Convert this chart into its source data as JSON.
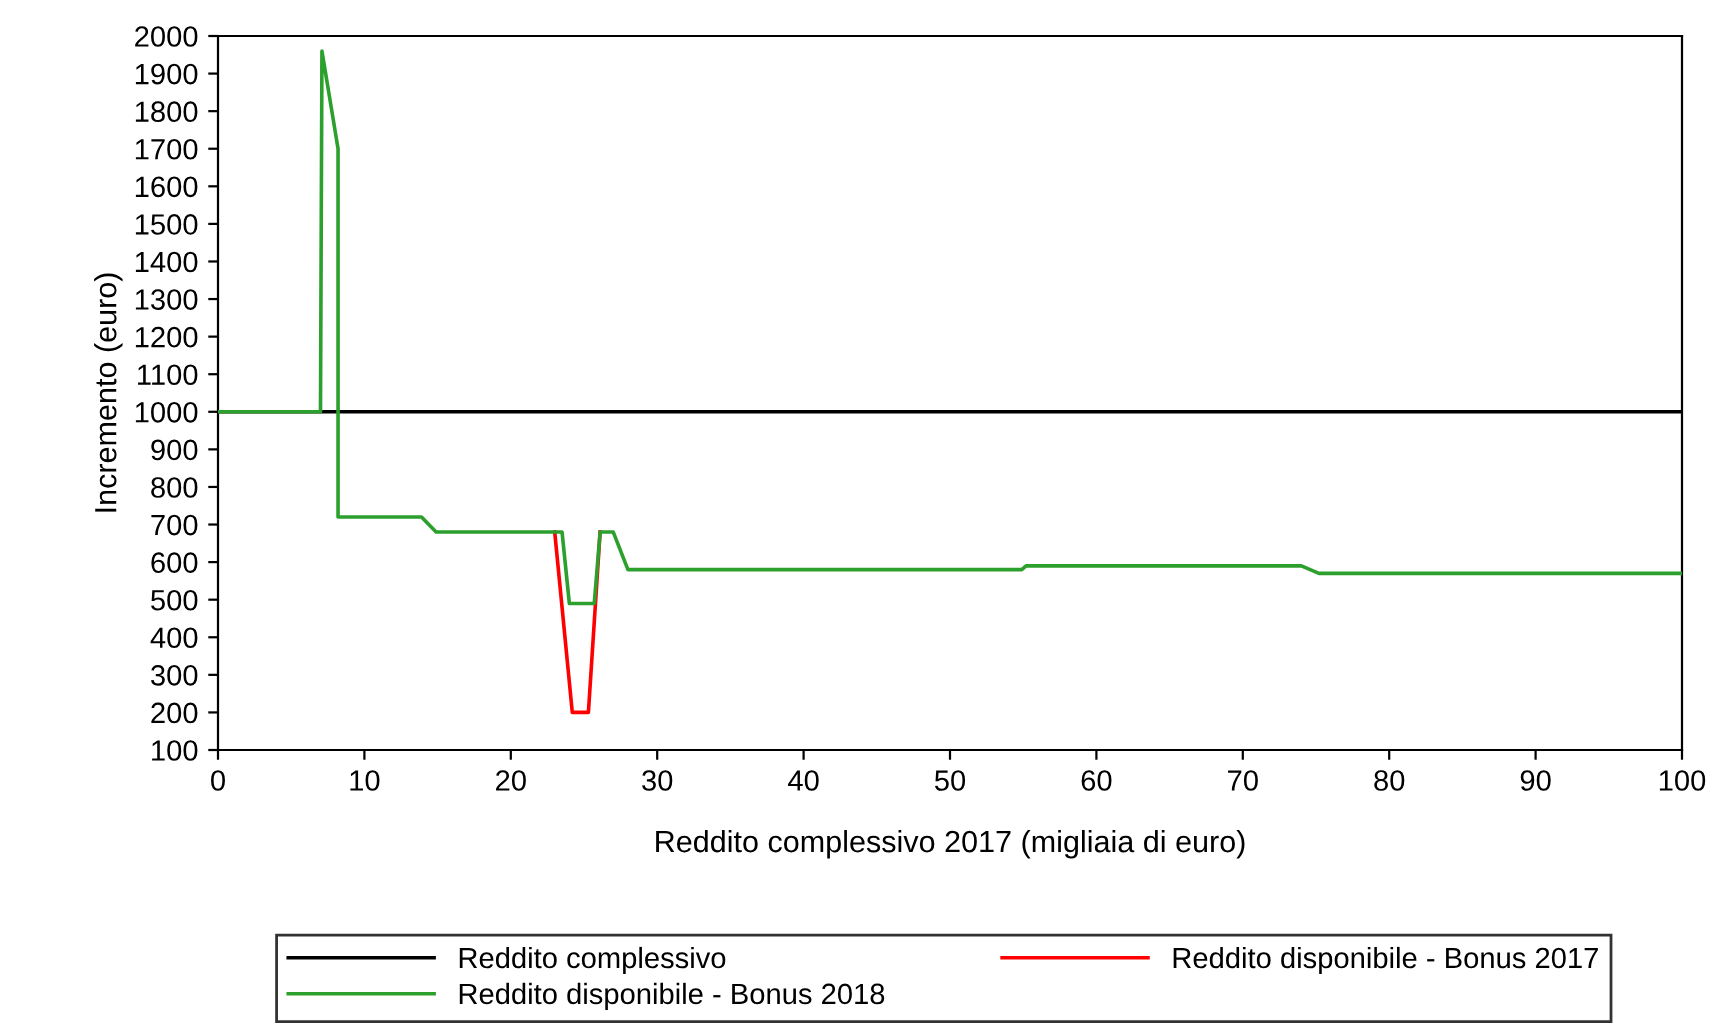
{
  "chart_data": {
    "type": "line",
    "xlabel": "Reddito complessivo 2017 (migliaia di euro)",
    "ylabel": "Incremento (euro)",
    "xlim": [
      0,
      100
    ],
    "xticks": [
      0,
      10,
      20,
      30,
      40,
      50,
      60,
      70,
      80,
      90,
      100
    ],
    "ylim": [
      100,
      2000
    ],
    "yticks": [
      100,
      200,
      300,
      400,
      500,
      600,
      700,
      800,
      900,
      1000,
      1100,
      1200,
      1300,
      1400,
      1500,
      1600,
      1700,
      1800,
      1900,
      2000
    ],
    "grid": false,
    "legend": "bottom",
    "marker": "none",
    "line_style": "solid",
    "series": [
      {
        "name": "Reddito complessivo",
        "color": "#000000",
        "x": [
          0,
          100
        ],
        "values": [
          1000,
          1000
        ]
      },
      {
        "name": "Reddito disponibile - Bonus 2017",
        "color": "#ff0000",
        "x": [
          23.0,
          24.2,
          25.3,
          26.1
        ],
        "values": [
          680,
          200,
          200,
          680
        ]
      },
      {
        "name": "Reddito disponibile - Bonus 2018",
        "color": "#2ca02c",
        "x": [
          0,
          7.0,
          7.1,
          8.2,
          8.2,
          13.9,
          14.9,
          23.5,
          24.0,
          25.7,
          26.1,
          27.0,
          28.0,
          54.9,
          55.2,
          74.0,
          75.2,
          100
        ],
        "values": [
          1000,
          1000,
          1960,
          1700,
          720,
          720,
          680,
          680,
          490,
          490,
          680,
          680,
          580,
          580,
          590,
          590,
          570,
          570
        ]
      }
    ]
  }
}
